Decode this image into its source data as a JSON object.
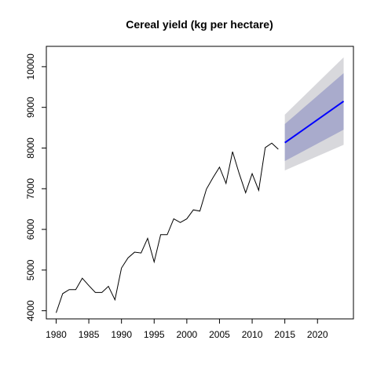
{
  "chart_data": {
    "type": "line",
    "title": "Cereal yield (kg per hectare)",
    "xlabel": "",
    "ylabel": "",
    "xlim": [
      1978.5,
      2025.5
    ],
    "ylim": [
      3800,
      10500
    ],
    "x_ticks": [
      1980,
      1985,
      1990,
      1995,
      2000,
      2005,
      2010,
      2015,
      2020
    ],
    "y_ticks": [
      4000,
      5000,
      6000,
      7000,
      8000,
      9000,
      10000
    ],
    "grid": false,
    "legend": "none",
    "series": [
      {
        "role": "observed",
        "color": "#000000",
        "x": [
          1980,
          1981,
          1982,
          1983,
          1984,
          1985,
          1986,
          1987,
          1988,
          1989,
          1990,
          1991,
          1992,
          1993,
          1994,
          1995,
          1996,
          1997,
          1998,
          1999,
          2000,
          2001,
          2002,
          2003,
          2004,
          2005,
          2006,
          2007,
          2008,
          2009,
          2010,
          2011,
          2012,
          2013,
          2014
        ],
        "values": [
          3950,
          4420,
          4520,
          4520,
          4800,
          4620,
          4450,
          4450,
          4600,
          4270,
          5050,
          5300,
          5440,
          5420,
          5780,
          5200,
          5870,
          5870,
          6260,
          6170,
          6260,
          6480,
          6450,
          6990,
          7270,
          7530,
          7130,
          7910,
          7380,
          6900,
          7370,
          6960,
          8010,
          8120,
          7970
        ]
      },
      {
        "role": "forecast",
        "color": "#0000ff",
        "x": [
          2015,
          2024
        ],
        "values": [
          8130,
          9150
        ]
      },
      {
        "role": "interval-95",
        "color": "#d8d8dc",
        "x": [
          2015,
          2024
        ],
        "lower": [
          7450,
          8080
        ],
        "upper": [
          8820,
          10230
        ]
      },
      {
        "role": "interval-80",
        "color": "#a9abcc",
        "x": [
          2015,
          2024
        ],
        "lower": [
          7680,
          8450
        ],
        "upper": [
          8590,
          9840
        ]
      }
    ]
  }
}
